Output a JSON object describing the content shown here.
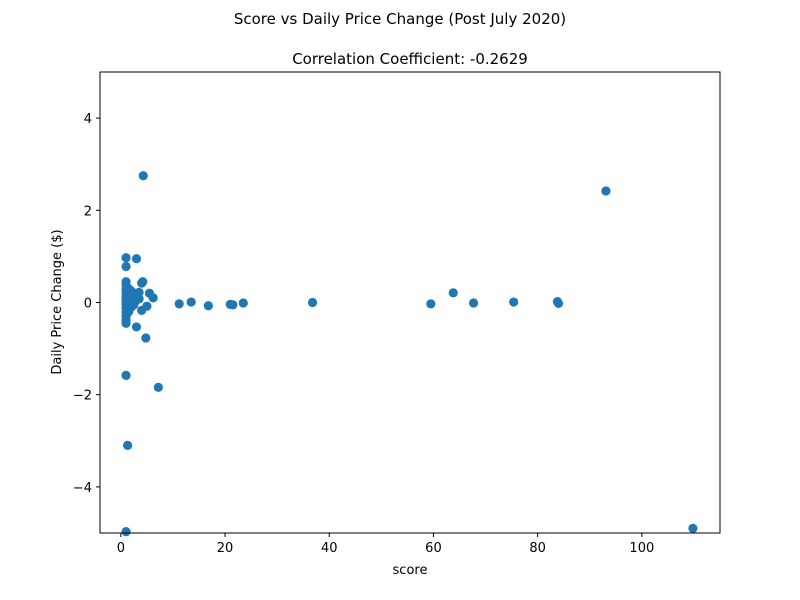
{
  "figure": {
    "suptitle": "Score vs Daily Price Change (Post July 2020)"
  },
  "chart_data": {
    "type": "scatter",
    "title": "Correlation Coefficient: -0.2629",
    "xlabel": "score",
    "ylabel": "Daily Price Change ($)",
    "xlim": [
      -4,
      115
    ],
    "ylim": [
      -5,
      5
    ],
    "xticks": [
      0,
      20,
      40,
      60,
      80,
      100
    ],
    "xtick_labels": [
      "0",
      "20",
      "40",
      "60",
      "80",
      "100"
    ],
    "yticks": [
      -4,
      -2,
      0,
      2,
      4
    ],
    "ytick_labels": [
      "−4",
      "−2",
      "0",
      "2",
      "4"
    ],
    "grid": false,
    "legend": false,
    "marker_color": "#1f77b4",
    "points": [
      {
        "x": 1.0,
        "y": 0.97
      },
      {
        "x": 1.0,
        "y": 0.78
      },
      {
        "x": 1.0,
        "y": 0.45
      },
      {
        "x": 1.0,
        "y": 0.38
      },
      {
        "x": 1.0,
        "y": 0.28
      },
      {
        "x": 1.0,
        "y": 0.2
      },
      {
        "x": 1.0,
        "y": 0.12
      },
      {
        "x": 1.0,
        "y": 0.05
      },
      {
        "x": 1.0,
        "y": 0.0
      },
      {
        "x": 1.0,
        "y": -0.05
      },
      {
        "x": 1.0,
        "y": -0.12
      },
      {
        "x": 1.0,
        "y": -0.22
      },
      {
        "x": 1.0,
        "y": -0.3
      },
      {
        "x": 1.0,
        "y": -0.38
      },
      {
        "x": 1.0,
        "y": -0.45
      },
      {
        "x": 1.0,
        "y": -1.58
      },
      {
        "x": 1.3,
        "y": -3.1
      },
      {
        "x": 1.0,
        "y": -4.97
      },
      {
        "x": 1.5,
        "y": 0.3
      },
      {
        "x": 1.5,
        "y": 0.15
      },
      {
        "x": 1.5,
        "y": 0.05
      },
      {
        "x": 1.5,
        "y": -0.08
      },
      {
        "x": 1.5,
        "y": -0.2
      },
      {
        "x": 2.0,
        "y": 0.25
      },
      {
        "x": 2.0,
        "y": 0.1
      },
      {
        "x": 2.0,
        "y": 0.0
      },
      {
        "x": 2.0,
        "y": -0.1
      },
      {
        "x": 2.5,
        "y": 0.2
      },
      {
        "x": 2.5,
        "y": 0.05
      },
      {
        "x": 2.5,
        "y": -0.05
      },
      {
        "x": 3.0,
        "y": 0.95
      },
      {
        "x": 3.0,
        "y": 0.15
      },
      {
        "x": 3.0,
        "y": 0.05
      },
      {
        "x": 3.0,
        "y": -0.53
      },
      {
        "x": 3.5,
        "y": 0.22
      },
      {
        "x": 3.5,
        "y": 0.08
      },
      {
        "x": 4.2,
        "y": 0.45
      },
      {
        "x": 4.0,
        "y": 0.42
      },
      {
        "x": 4.0,
        "y": -0.17
      },
      {
        "x": 4.3,
        "y": 2.75
      },
      {
        "x": 4.8,
        "y": -0.77
      },
      {
        "x": 5.0,
        "y": -0.08
      },
      {
        "x": 5.5,
        "y": 0.2
      },
      {
        "x": 6.2,
        "y": 0.1
      },
      {
        "x": 7.2,
        "y": -1.84
      },
      {
        "x": 11.2,
        "y": -0.03
      },
      {
        "x": 13.5,
        "y": 0.01
      },
      {
        "x": 16.8,
        "y": -0.07
      },
      {
        "x": 21.0,
        "y": -0.04
      },
      {
        "x": 21.5,
        "y": -0.05
      },
      {
        "x": 23.5,
        "y": -0.01
      },
      {
        "x": 36.8,
        "y": 0.0
      },
      {
        "x": 59.5,
        "y": -0.03
      },
      {
        "x": 63.8,
        "y": 0.21
      },
      {
        "x": 67.7,
        "y": -0.01
      },
      {
        "x": 75.4,
        "y": 0.01
      },
      {
        "x": 83.8,
        "y": 0.02
      },
      {
        "x": 84.0,
        "y": -0.02
      },
      {
        "x": 93.1,
        "y": 2.42
      },
      {
        "x": 109.8,
        "y": -4.9
      }
    ]
  }
}
